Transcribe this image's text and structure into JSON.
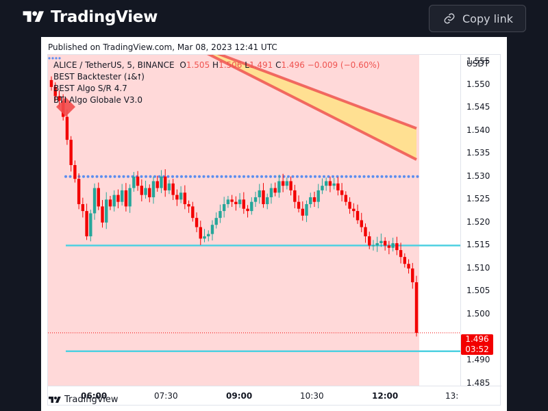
{
  "header": {
    "logo_text": "TradingView",
    "copy_link_label": "Copy link"
  },
  "card": {
    "published": "Published on TradingView.com, Mar 08, 2023 12:41 UTC",
    "footer_logo_text": "TradingView"
  },
  "legend": {
    "symbol": "ALICE / TetherUS, 5, BINANCE",
    "o_label": "O",
    "o_value": "1.505",
    "h_label": "H",
    "h_value": "1.506",
    "l_label": "L",
    "l_value": "1.491",
    "c_label": "C",
    "c_value": "1.496",
    "change": "−0.009 (−0.60%)",
    "indicators": [
      "BEST Backtester (⭣&⭡)",
      "BEST Algo S/R 4.7",
      "BTI Algo Globale V3.0"
    ]
  },
  "price_axis": {
    "currency": "USDT",
    "labels": [
      "1.555",
      "1.550",
      "1.545",
      "1.540",
      "1.535",
      "1.530",
      "1.525",
      "1.520",
      "1.515",
      "1.510",
      "1.505",
      "1.500",
      "1.490",
      "1.485"
    ],
    "last_price": "1.496",
    "countdown": "03:52"
  },
  "time_axis": {
    "labels": [
      {
        "text": "06:00",
        "bold": true
      },
      {
        "text": "07:30",
        "bold": false
      },
      {
        "text": "09:00",
        "bold": true
      },
      {
        "text": "10:30",
        "bold": false
      },
      {
        "text": "12:00",
        "bold": true
      },
      {
        "text": "13:",
        "bold": false
      }
    ]
  },
  "colors": {
    "up": "#26a69a",
    "down": "#f20000",
    "background_zone": "#ffd9d9",
    "support_line": "#4dd0e1",
    "dotted_level": "#5b8def",
    "band_fill": "#ffe08a",
    "band_edge": "#ef5350"
  },
  "chart_data": {
    "type": "candlestick",
    "symbol": "ALICE / TetherUS",
    "interval": "5",
    "exchange": "BINANCE",
    "ylim": [
      1.4845,
      1.5565
    ],
    "levels": {
      "dotted_resistance": 1.53,
      "support_upper": 1.515,
      "support_lower": 1.492
    },
    "band": {
      "upper_start": 1.56,
      "upper_end": 1.5405,
      "lower_start": 1.56,
      "lower_end": 1.5337
    },
    "closes": [
      1.5495,
      1.5475,
      1.5465,
      1.543,
      1.538,
      1.5325,
      1.5295,
      1.524,
      1.5225,
      1.517,
      1.522,
      1.5275,
      1.5235,
      1.52,
      1.525,
      1.5235,
      1.526,
      1.5245,
      1.527,
      1.5235,
      1.5275,
      1.53,
      1.528,
      1.526,
      1.5275,
      1.5255,
      1.529,
      1.5275,
      1.53,
      1.527,
      1.5285,
      1.526,
      1.525,
      1.5265,
      1.524,
      1.5235,
      1.521,
      1.519,
      1.5165,
      1.517,
      1.5175,
      1.5195,
      1.521,
      1.5225,
      1.524,
      1.525,
      1.5245,
      1.524,
      1.525,
      1.523,
      1.5225,
      1.5245,
      1.5255,
      1.527,
      1.524,
      1.5255,
      1.5275,
      1.5265,
      1.529,
      1.528,
      1.529,
      1.527,
      1.5245,
      1.523,
      1.5215,
      1.524,
      1.5255,
      1.5245,
      1.527,
      1.528,
      1.529,
      1.528,
      1.5285,
      1.527,
      1.526,
      1.5245,
      1.523,
      1.5225,
      1.5205,
      1.519,
      1.517,
      1.515,
      1.515,
      1.5155,
      1.516,
      1.515,
      1.5145,
      1.5155,
      1.514,
      1.5125,
      1.511,
      1.51,
      1.507,
      1.496
    ],
    "opens_offset_note": "",
    "current_price": 1.496
  }
}
